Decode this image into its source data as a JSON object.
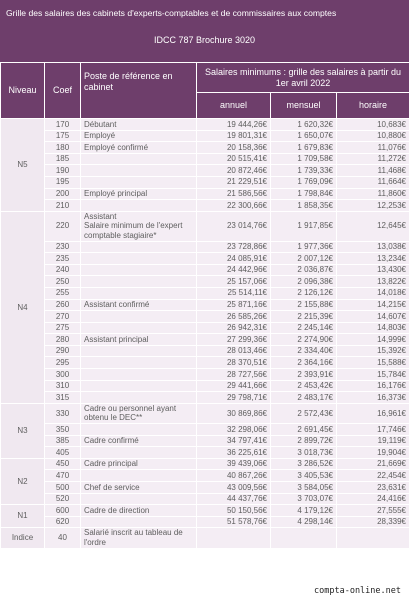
{
  "header": {
    "title": "Grille des salaires des cabinets d'experts-comptables et de commissaires aux comptes",
    "subtitle": "IDCC 787 Brochure 3020"
  },
  "table": {
    "columns": {
      "niveau": "Niveau",
      "coef": "Coef",
      "poste": "Poste de référence en cabinet",
      "salaires": "Salaires minimums : grille des salaires à partir du 1er avril 2022",
      "annuel": "annuel",
      "mensuel": "mensuel",
      "horaire": "horaire"
    },
    "groups": [
      {
        "niveau": "N5",
        "rows": [
          [
            170,
            "Débutant",
            "19 444,26€",
            "1 620,32€",
            "10,683€"
          ],
          [
            175,
            "Employé",
            "19 801,31€",
            "1 650,07€",
            "10,880€"
          ],
          [
            180,
            "Employé confirmé",
            "20 158,36€",
            "1 679,83€",
            "11,076€"
          ],
          [
            185,
            null,
            "20 515,41€",
            "1 709,58€",
            "11,272€"
          ],
          [
            190,
            null,
            "20 872,46€",
            "1 739,33€",
            "11,468€"
          ],
          [
            195,
            null,
            "21 229,51€",
            "1 769,09€",
            "11,664€"
          ],
          [
            200,
            "Employé principal",
            "21 586,56€",
            "1 798,84€",
            "11,860€"
          ],
          [
            210,
            null,
            "22 300,66€",
            "1 858,35€",
            "12,253€"
          ]
        ]
      },
      {
        "niveau": "N4",
        "rows": [
          [
            220,
            [
              "Assistant",
              "Salaire minimum de l'expert comptable stagiaire*"
            ],
            "23 014,76€",
            "1 917,85€",
            "12,645€"
          ],
          [
            230,
            null,
            "23 728,86€",
            "1 977,36€",
            "13,038€"
          ],
          [
            235,
            null,
            "24 085,91€",
            "2 007,12€",
            "13,234€"
          ],
          [
            240,
            null,
            "24 442,96€",
            "2 036,87€",
            "13,430€"
          ],
          [
            250,
            null,
            "25 157,06€",
            "2 096,38€",
            "13,822€"
          ],
          [
            255,
            null,
            "25 514,11€",
            "2 126,12€",
            "14,018€"
          ],
          [
            260,
            "Assistant confirmé",
            "25 871,16€",
            "2 155,88€",
            "14,215€"
          ],
          [
            270,
            null,
            "26 585,26€",
            "2 215,39€",
            "14,607€"
          ],
          [
            275,
            null,
            "26 942,31€",
            "2 245,14€",
            "14,803€"
          ],
          [
            280,
            "Assistant principal",
            "27 299,36€",
            "2 274,90€",
            "14,999€"
          ],
          [
            290,
            null,
            "28 013,46€",
            "2 334,40€",
            "15,392€"
          ],
          [
            295,
            null,
            "28 370,51€",
            "2 364,16€",
            "15,588€"
          ],
          [
            300,
            null,
            "28 727,56€",
            "2 393,91€",
            "15,784€"
          ],
          [
            310,
            null,
            "29 441,66€",
            "2 453,42€",
            "16,176€"
          ],
          [
            315,
            null,
            "29 798,71€",
            "2 483,17€",
            "16,373€"
          ]
        ]
      },
      {
        "niveau": "N3",
        "rows": [
          [
            330,
            "Cadre ou personnel ayant obtenu le DEC**",
            "30 869,86€",
            "2 572,43€",
            "16,961€"
          ],
          [
            350,
            null,
            "32 298,06€",
            "2 691,45€",
            "17,746€"
          ],
          [
            385,
            "Cadre confirmé",
            "34 797,41€",
            "2 899,72€",
            "19,119€"
          ],
          [
            405,
            null,
            "36 225,61€",
            "3 018,73€",
            "19,904€"
          ]
        ]
      },
      {
        "niveau": "N2",
        "rows": [
          [
            450,
            "Cadre principal",
            "39 439,06€",
            "3 286,52€",
            "21,669€"
          ],
          [
            470,
            null,
            "40 867,26€",
            "3 405,53€",
            "22,454€"
          ],
          [
            500,
            "Chef de service",
            "43 009,56€",
            "3 584,05€",
            "23,631€"
          ],
          [
            520,
            null,
            "44 437,76€",
            "3 703,07€",
            "24,416€"
          ]
        ]
      },
      {
        "niveau": "N1",
        "rows": [
          [
            600,
            "Cadre de direction",
            "50 150,56€",
            "4 179,12€",
            "27,555€"
          ],
          [
            620,
            null,
            "51 578,76€",
            "4 298,14€",
            "28,339€"
          ]
        ]
      },
      {
        "niveau": "Indice",
        "rows": [
          [
            40,
            "Salarié inscrit au tableau de l'ordre",
            null,
            null,
            null
          ]
        ]
      }
    ]
  },
  "footer": {
    "site": "compta-online.net"
  }
}
